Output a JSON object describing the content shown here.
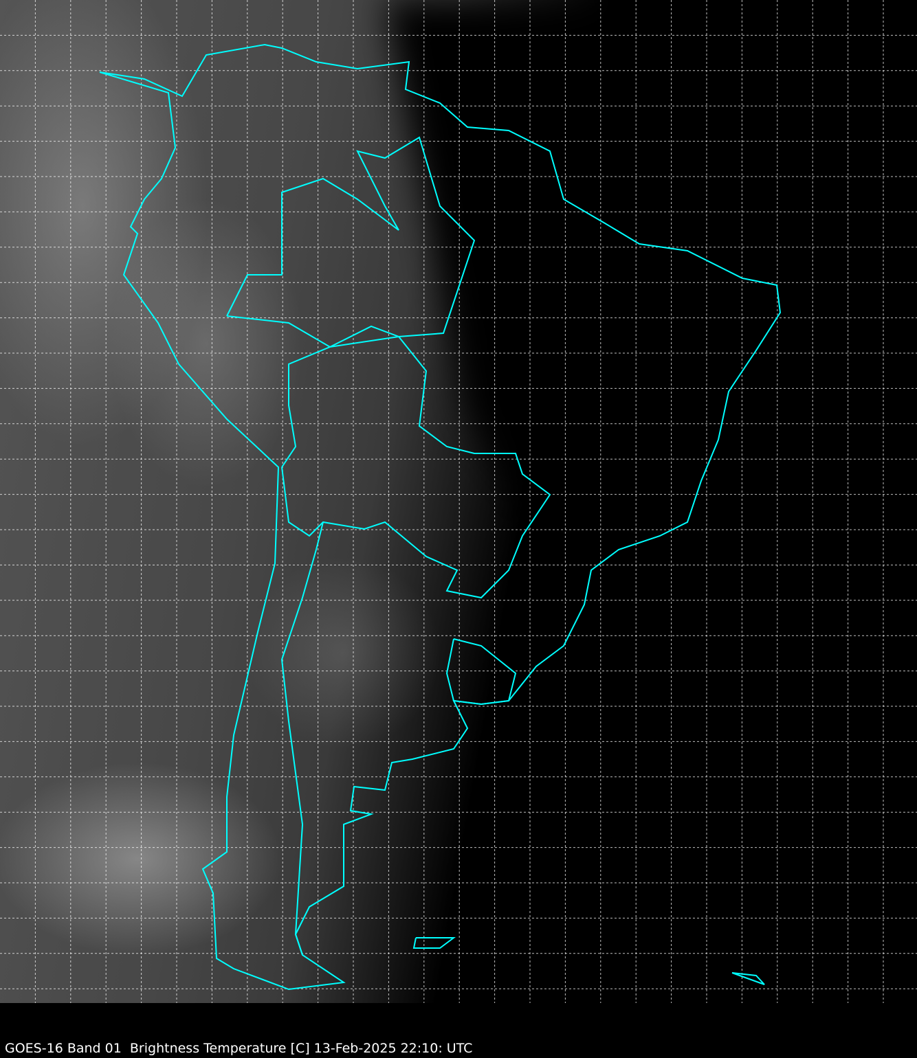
{
  "caption": "GOES-16 Band 01  Brightness Temperature [C] 13-Feb-2025 22:10: UTC",
  "colors": {
    "borders": "#00ffff",
    "grid": "#ffffff",
    "background": "#000000"
  },
  "map": {
    "region": "South America",
    "grid_lines": "dashed",
    "border_style": "cyan outline"
  }
}
